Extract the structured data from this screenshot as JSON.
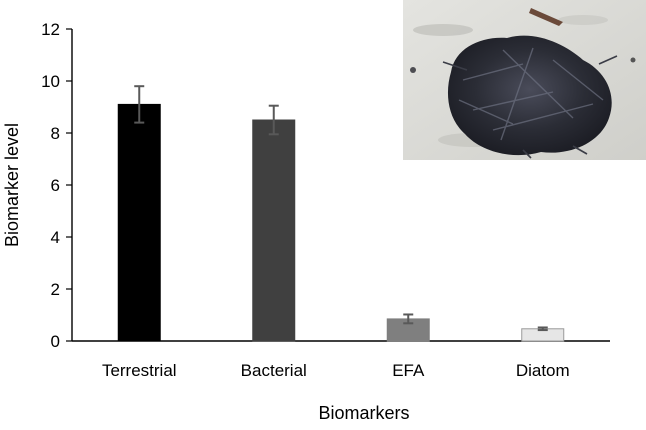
{
  "chart_data": {
    "type": "bar",
    "title": "",
    "xlabel": "Biomarkers",
    "ylabel": "Biomarker level",
    "categories": [
      "Terrestrial",
      "Bacterial",
      "EFA",
      "Diatom"
    ],
    "values": [
      9.1,
      8.5,
      0.85,
      0.47
    ],
    "errors": [
      0.7,
      0.55,
      0.17,
      0.05
    ],
    "ylim": [
      0,
      12
    ],
    "yticks": [
      0,
      2,
      4,
      6,
      8,
      10,
      12
    ],
    "grid": false,
    "legend": "none",
    "colors": [
      "#000000",
      "#404040",
      "#7f7f7f",
      "#e6e6e6"
    ]
  },
  "inset_image": {
    "subject": "dark fibrous clump of organic material on pale sand",
    "colors": {
      "sand": "#dcdcd8",
      "clump": "#2b2d36",
      "debris": "#6b4a3a"
    }
  }
}
